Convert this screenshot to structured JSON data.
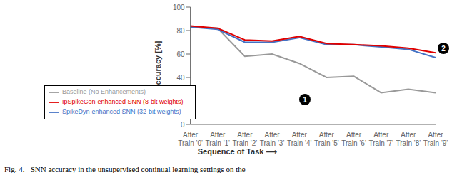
{
  "chart_data": {
    "type": "line",
    "categories": [
      "After\nTrain '0'",
      "After\nTrain '1'",
      "After\nTrain '2'",
      "After\nTrain '3'",
      "After\nTrain '4'",
      "After\nTrain '5'",
      "After\nTrain '6'",
      "After\nTrain '7'",
      "After\nTrain '8'",
      "After\nTrain '9'"
    ],
    "series": [
      {
        "name": "Baseline (No Enhancements)",
        "color": "#999999",
        "values": [
          83,
          82,
          58,
          60,
          52,
          40,
          41,
          27,
          30,
          27
        ]
      },
      {
        "name": "SpikeDyn-enhanced SNN (32-bit weights)",
        "color": "#4472c4",
        "values": [
          83,
          81,
          70,
          70,
          74,
          68,
          68,
          66,
          64,
          57
        ]
      },
      {
        "name": "IpSpikeCon-enhanced SNN (8-bit weights)",
        "color": "#e00000",
        "values": [
          84,
          82,
          72,
          71,
          75,
          69,
          68,
          67,
          65,
          61
        ]
      }
    ],
    "xlabel": "Sequence of Task  ⟶",
    "ylabel": "Accuracy [%]",
    "ylim": [
      0,
      100
    ],
    "yticks": [
      0,
      20,
      40,
      60,
      80,
      100
    ],
    "grid": false,
    "legend": "lower left",
    "caption": "Fig. 4.   SNN accuracy in the unsupervised continual learning settings on the",
    "annotations": [
      "1",
      "2"
    ]
  }
}
